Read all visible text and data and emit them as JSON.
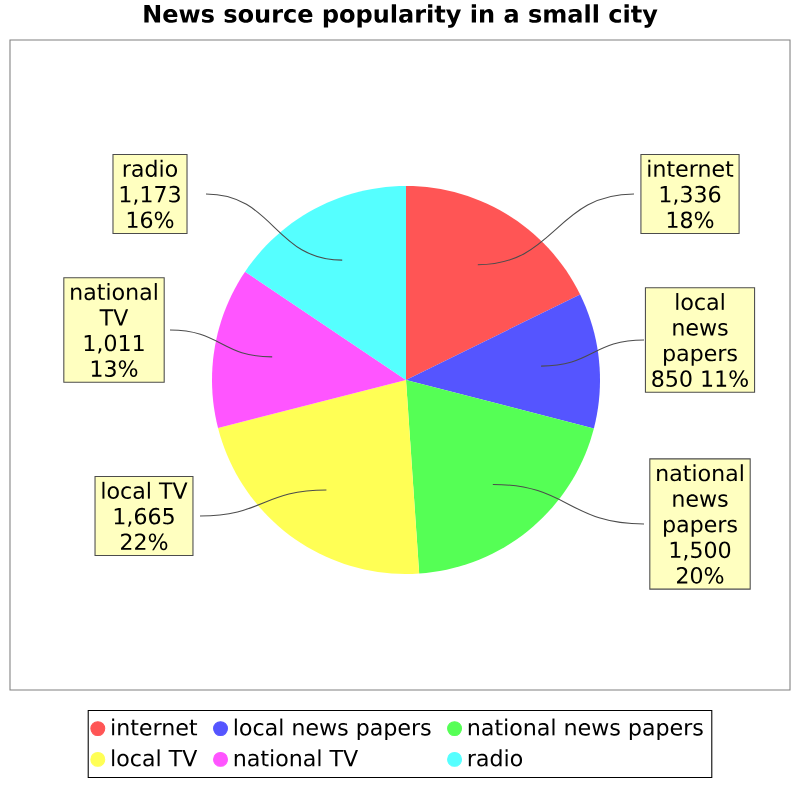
{
  "chart_data": {
    "type": "pie",
    "title": "News source popularity in a small city",
    "categories": [
      "internet",
      "local news papers",
      "national news papers",
      "local TV",
      "national TV",
      "radio"
    ],
    "values": [
      1336,
      850,
      1500,
      1665,
      1011,
      1173
    ],
    "value_labels": [
      "1,336 18%",
      "850 11%",
      "1,500 20%",
      "1,665 22%",
      "1,011 13%",
      "1,173 16%"
    ],
    "colors": [
      "#ff5555",
      "#5555ff",
      "#55ff55",
      "#ffff55",
      "#ff55ff",
      "#55ffff"
    ],
    "legend": "bottom"
  }
}
